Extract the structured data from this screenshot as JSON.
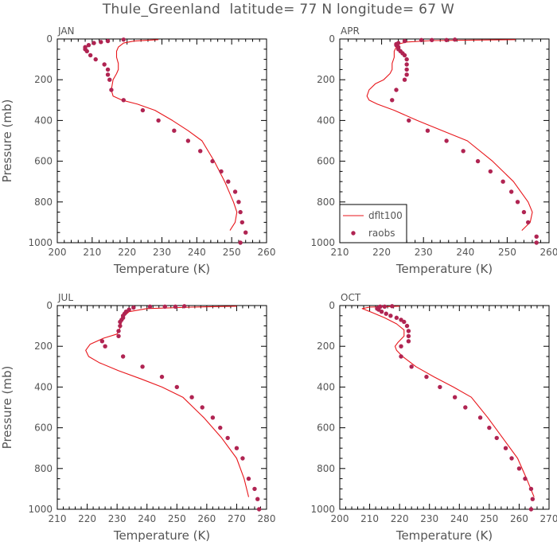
{
  "figure": {
    "title": "Thule_Greenland  latitude= 77 N longitude= 67 W"
  },
  "colors": {
    "model_line": "#e8161b",
    "raobs_marker": "#b02452",
    "axis": "#000000",
    "label_text": "#555555"
  },
  "chart_data": [
    {
      "type": "line",
      "panel_label": "JAN",
      "xlabel": "Temperature (K)",
      "ylabel": "Pressure (mb)",
      "xlim": [
        200,
        260
      ],
      "ylim": [
        1000,
        0
      ],
      "xticks": [
        200,
        210,
        220,
        230,
        240,
        250,
        260
      ],
      "yticks": [
        0,
        200,
        400,
        600,
        800,
        1000
      ],
      "legend": null,
      "series": [
        {
          "name": "dflt100",
          "style": "line",
          "x": [
            249.5,
            251,
            251.5,
            250.5,
            248,
            245,
            241.5,
            237.5,
            233,
            228,
            223,
            218.5,
            216,
            215.5,
            216,
            217,
            217.5,
            217.5,
            217,
            217,
            217.5,
            219,
            222,
            229
          ],
          "y": [
            940,
            900,
            850,
            800,
            700,
            600,
            500,
            450,
            400,
            350,
            320,
            300,
            280,
            250,
            200,
            170,
            150,
            120,
            90,
            60,
            40,
            20,
            10,
            3
          ]
        },
        {
          "name": "raobs",
          "style": "markers",
          "x": [
            252.5,
            254,
            253,
            252.5,
            252,
            251,
            249,
            247,
            244.5,
            241,
            237.5,
            233.5,
            229,
            224.5,
            219,
            215.5,
            215,
            214.5,
            214.5,
            213.5,
            211,
            209.5,
            208.5,
            208,
            208,
            209,
            210.5,
            212.5,
            214.5,
            219
          ],
          "y": [
            1000,
            950,
            900,
            850,
            800,
            750,
            700,
            650,
            600,
            550,
            500,
            450,
            400,
            350,
            300,
            250,
            200,
            175,
            150,
            125,
            100,
            80,
            60,
            50,
            40,
            30,
            20,
            15,
            10,
            3
          ]
        }
      ]
    },
    {
      "type": "line",
      "panel_label": "APR",
      "xlabel": "Temperature (K)",
      "ylabel": "",
      "xlim": [
        210,
        260
      ],
      "ylim": [
        1000,
        0
      ],
      "xticks": [
        210,
        220,
        230,
        240,
        250,
        260
      ],
      "yticks": [
        0,
        200,
        400,
        600,
        800,
        1000
      ],
      "legend": "lower-left",
      "series": [
        {
          "name": "dflt100",
          "style": "line",
          "x": [
            253.5,
            255.5,
            256,
            255,
            251.5,
            246.5,
            240.5,
            234.5,
            228.5,
            223,
            219,
            217,
            216.5,
            217,
            218.5,
            220.5,
            222,
            222.5,
            222.5,
            223,
            223,
            223.5,
            224,
            226,
            232,
            252
          ],
          "y": [
            940,
            900,
            850,
            800,
            700,
            600,
            500,
            450,
            400,
            350,
            320,
            300,
            280,
            250,
            220,
            200,
            170,
            150,
            120,
            90,
            60,
            40,
            25,
            15,
            8,
            3
          ]
        },
        {
          "name": "raobs",
          "style": "markers",
          "x": [
            257,
            257,
            255,
            254,
            252.5,
            251,
            249,
            246,
            243,
            239.5,
            235.5,
            231,
            226.5,
            222.5,
            223.5,
            225.5,
            226,
            226,
            226,
            226,
            225.5,
            225,
            224.5,
            224,
            224,
            223.5,
            223.5,
            224,
            225.5,
            229.5,
            232,
            235.5,
            237.5
          ],
          "y": [
            1000,
            970,
            900,
            850,
            800,
            750,
            700,
            650,
            600,
            550,
            500,
            450,
            400,
            300,
            250,
            200,
            175,
            150,
            125,
            100,
            80,
            70,
            60,
            50,
            40,
            30,
            25,
            20,
            10,
            5,
            5,
            5,
            3
          ]
        }
      ]
    },
    {
      "type": "line",
      "panel_label": "JUL",
      "xlabel": "Temperature (K)",
      "ylabel": "Pressure (mb)",
      "xlim": [
        210,
        280
      ],
      "ylim": [
        1000,
        0
      ],
      "xticks": [
        210,
        220,
        230,
        240,
        250,
        260,
        270,
        280
      ],
      "yticks": [
        0,
        200,
        400,
        600,
        800,
        1000
      ],
      "legend": null,
      "series": [
        {
          "name": "dflt100",
          "style": "line",
          "x": [
            274,
            272.5,
            270,
            265,
            259,
            252,
            245,
            238,
            230.5,
            224,
            220.5,
            219.5,
            221,
            225.5,
            230,
            231,
            231.5,
            232.5,
            234,
            240,
            255,
            270
          ],
          "y": [
            940,
            850,
            750,
            650,
            550,
            450,
            400,
            360,
            320,
            280,
            250,
            220,
            190,
            160,
            140,
            110,
            80,
            50,
            30,
            15,
            8,
            3
          ]
        },
        {
          "name": "raobs",
          "style": "markers",
          "x": [
            277.5,
            277,
            276,
            274,
            272,
            270,
            267,
            264.5,
            262,
            258.5,
            255,
            250,
            245,
            238.5,
            232,
            226,
            225,
            230.5,
            230.5,
            231,
            231,
            231.5,
            232,
            232,
            232.5,
            233,
            234,
            235.5,
            241,
            246,
            249.5,
            252.5
          ],
          "y": [
            1000,
            950,
            900,
            850,
            750,
            700,
            650,
            600,
            550,
            500,
            450,
            400,
            350,
            300,
            250,
            200,
            175,
            150,
            125,
            100,
            80,
            70,
            60,
            50,
            40,
            30,
            20,
            10,
            5,
            5,
            5,
            3
          ]
        }
      ]
    },
    {
      "type": "line",
      "panel_label": "OCT",
      "xlabel": "Temperature (K)",
      "ylabel": "",
      "xlim": [
        200,
        270
      ],
      "ylim": [
        1000,
        0
      ],
      "xticks": [
        200,
        210,
        220,
        230,
        240,
        250,
        260,
        270
      ],
      "yticks": [
        0,
        200,
        400,
        600,
        800,
        1000
      ],
      "legend": null,
      "series": [
        {
          "name": "dflt100",
          "style": "line",
          "x": [
            265,
            262.5,
            259.5,
            254.5,
            249.5,
            244,
            238,
            231.5,
            225.5,
            221,
            219,
            218.5,
            219.5,
            221.5,
            221.5,
            219,
            215,
            211,
            207.5,
            210,
            216,
            220
          ],
          "y": [
            940,
            850,
            750,
            650,
            550,
            450,
            400,
            350,
            300,
            250,
            220,
            200,
            180,
            150,
            120,
            90,
            60,
            35,
            15,
            8,
            5,
            3
          ]
        },
        {
          "name": "raobs",
          "style": "markers",
          "x": [
            264,
            264.5,
            264,
            262,
            260,
            257.5,
            255.5,
            252.5,
            250,
            247,
            242,
            238.5,
            233.5,
            229,
            224,
            220.5,
            220.5,
            223,
            223,
            223,
            222.5,
            221.5,
            220.5,
            219,
            217,
            215.5,
            214,
            213,
            212.5,
            213,
            213.5,
            215,
            217.5
          ],
          "y": [
            1000,
            950,
            900,
            850,
            800,
            750,
            700,
            650,
            600,
            550,
            500,
            450,
            400,
            350,
            300,
            250,
            200,
            175,
            150,
            125,
            100,
            80,
            70,
            60,
            50,
            40,
            30,
            20,
            15,
            10,
            5,
            5,
            3
          ]
        }
      ]
    }
  ]
}
